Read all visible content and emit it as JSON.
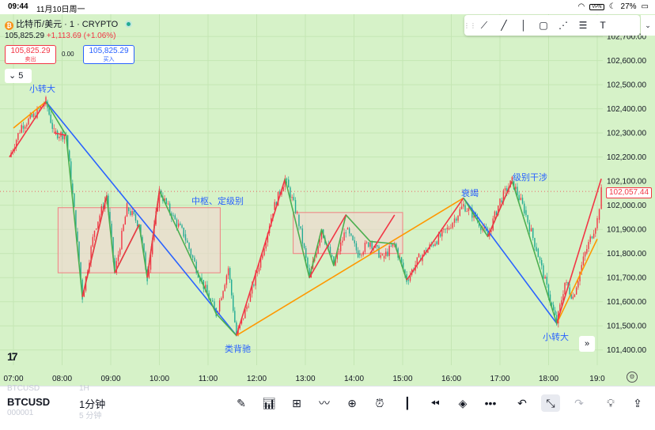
{
  "status_bar": {
    "time": "09:44",
    "date": "11月10日周一",
    "vpn": "VPN",
    "battery": "27%"
  },
  "symbol": {
    "title": "比特币/美元 · 1 · CRYPTO",
    "price": "105,825.29",
    "change": "+1,113.69 (+1.06%)",
    "sell_price": "105,825.29",
    "sell_label": "卖出",
    "spread": "0.00",
    "buy_price": "105,825.29",
    "buy_label": "买入",
    "interval": "5"
  },
  "draw_tools": [
    "trend-line-icon",
    "ray-icon",
    "vertical-line-icon",
    "rectangle-icon",
    "pattern-icon",
    "fib-icon",
    "text-icon"
  ],
  "annotations": {
    "small_turn_1": "小转大",
    "pivot": "中枢、定级别",
    "divergence": "类背驰",
    "exhaustion": "衰竭",
    "level_interference": "级别干涉",
    "small_turn_2": "小转大"
  },
  "last_price_label": "102,057.44",
  "bottom_bar": {
    "symbol": "BTCUSD",
    "timeframe": "1分钟",
    "ghost_top": "BTCUSD",
    "ghost_top_tf": "1H",
    "ghost_bottom": "000001",
    "ghost_bottom_tf": "5 分钟"
  },
  "colors": {
    "background": "#d6f2c8",
    "up": "#f23645",
    "down": "#22ab94",
    "leg_up": "#f23645",
    "leg_down": "#2962ff",
    "orange": "#ff9800",
    "green_leg": "#4caf50",
    "pivot_fill": "#f2d6d0",
    "pivot_border": "#f08080"
  },
  "chart_data": {
    "type": "line",
    "title": "比特币/美元 · 1 · CRYPTO",
    "x_ticks": [
      "07:00",
      "08:00",
      "09:00",
      "10:00",
      "11:00",
      "12:00",
      "13:00",
      "14:00",
      "15:00",
      "16:00",
      "17:00",
      "18:00",
      "19:0"
    ],
    "y_ticks": [
      "102,700.00",
      "102,600.00",
      "102,500.00",
      "102,400.00",
      "102,300.00",
      "102,200.00",
      "102,100.00",
      "102,000.00",
      "101,900.00",
      "101,800.00",
      "101,700.00",
      "101,600.00",
      "101,500.00",
      "101,400.00"
    ],
    "ylim": [
      101350,
      102720
    ],
    "price_series": [
      [
        "06:55",
        102200
      ],
      [
        "07:10",
        102330
      ],
      [
        "07:25",
        102370
      ],
      [
        "07:40",
        102430
      ],
      [
        "07:50",
        102300
      ],
      [
        "08:05",
        102290
      ],
      [
        "08:15",
        101980
      ],
      [
        "08:25",
        101620
      ],
      [
        "08:40",
        101900
      ],
      [
        "08:55",
        102040
      ],
      [
        "09:05",
        101720
      ],
      [
        "09:20",
        101990
      ],
      [
        "09:35",
        101920
      ],
      [
        "09:45",
        101700
      ],
      [
        "10:00",
        102060
      ],
      [
        "10:15",
        101960
      ],
      [
        "10:30",
        101880
      ],
      [
        "10:50",
        101700
      ],
      [
        "11:10",
        101550
      ],
      [
        "11:25",
        101740
      ],
      [
        "11:35",
        101460
      ],
      [
        "11:50",
        101600
      ],
      [
        "12:05",
        101780
      ],
      [
        "12:20",
        101980
      ],
      [
        "12:35",
        102110
      ],
      [
        "12:50",
        101960
      ],
      [
        "13:05",
        101700
      ],
      [
        "13:20",
        101900
      ],
      [
        "13:35",
        101750
      ],
      [
        "13:50",
        101900
      ],
      [
        "14:05",
        101800
      ],
      [
        "14:20",
        101850
      ],
      [
        "14:35",
        101780
      ],
      [
        "14:50",
        101840
      ],
      [
        "15:05",
        101690
      ],
      [
        "15:20",
        101780
      ],
      [
        "15:40",
        101850
      ],
      [
        "15:55",
        101900
      ],
      [
        "16:15",
        102000
      ],
      [
        "16:30",
        101950
      ],
      [
        "16:45",
        101870
      ],
      [
        "17:00",
        102020
      ],
      [
        "17:15",
        102100
      ],
      [
        "17:30",
        101980
      ],
      [
        "17:45",
        101820
      ],
      [
        "18:00",
        101630
      ],
      [
        "18:10",
        101510
      ],
      [
        "18:20",
        101680
      ],
      [
        "18:30",
        101620
      ],
      [
        "18:45",
        101800
      ],
      [
        "19:00",
        101940
      ],
      [
        "19:05",
        102057.44
      ]
    ],
    "legs": [
      {
        "color": "leg_down",
        "points": [
          [
            "07:40",
            102430
          ],
          [
            "11:35",
            101460
          ]
        ]
      },
      {
        "color": "orange",
        "points": [
          [
            "07:00",
            102320
          ],
          [
            "07:40",
            102430
          ]
        ]
      },
      {
        "color": "orange",
        "points": [
          [
            "11:35",
            101460
          ],
          [
            "16:15",
            102030
          ]
        ]
      },
      {
        "color": "leg_down",
        "points": [
          [
            "16:15",
            102030
          ],
          [
            "18:10",
            101510
          ]
        ]
      },
      {
        "color": "orange",
        "points": [
          [
            "18:10",
            101510
          ],
          [
            "19:00",
            101860
          ]
        ]
      },
      {
        "color": "leg_up",
        "points": [
          [
            "06:55",
            102200
          ],
          [
            "07:40",
            102430
          ]
        ]
      },
      {
        "color": "leg_up",
        "points": [
          [
            "18:10",
            101510
          ],
          [
            "19:05",
            102110
          ]
        ]
      },
      {
        "color": "green_leg",
        "points": [
          [
            "07:40",
            102430
          ],
          [
            "08:05",
            102290
          ],
          [
            "08:25",
            101620
          ],
          [
            "08:55",
            102040
          ],
          [
            "09:05",
            101720
          ],
          [
            "09:35",
            101920
          ],
          [
            "09:45",
            101700
          ],
          [
            "10:00",
            102060
          ],
          [
            "10:50",
            101700
          ],
          [
            "11:10",
            101550
          ],
          [
            "11:35",
            101460
          ]
        ]
      },
      {
        "color": "leg_up",
        "points": [
          [
            "07:50",
            102300
          ],
          [
            "08:05",
            102290
          ]
        ]
      },
      {
        "color": "leg_up",
        "points": [
          [
            "08:25",
            101620
          ],
          [
            "08:55",
            102040
          ]
        ]
      },
      {
        "color": "leg_up",
        "points": [
          [
            "09:05",
            101720
          ],
          [
            "09:35",
            101920
          ]
        ]
      },
      {
        "color": "leg_up",
        "points": [
          [
            "09:45",
            101700
          ],
          [
            "10:00",
            102060
          ]
        ]
      },
      {
        "color": "leg_up",
        "points": [
          [
            "11:35",
            101460
          ],
          [
            "12:35",
            102110
          ]
        ]
      },
      {
        "color": "green_leg",
        "points": [
          [
            "12:35",
            102110
          ],
          [
            "13:05",
            101700
          ],
          [
            "13:20",
            101900
          ],
          [
            "13:35",
            101750
          ],
          [
            "13:50",
            101960
          ],
          [
            "14:20",
            101850
          ],
          [
            "14:50",
            101840
          ],
          [
            "15:05",
            101690
          ]
        ]
      },
      {
        "color": "leg_up",
        "points": [
          [
            "13:05",
            101700
          ],
          [
            "13:50",
            101960
          ]
        ]
      },
      {
        "color": "leg_up",
        "points": [
          [
            "14:20",
            101800
          ],
          [
            "14:50",
            101960
          ]
        ]
      },
      {
        "color": "leg_up",
        "points": [
          [
            "15:05",
            101690
          ],
          [
            "16:15",
            102030
          ]
        ]
      },
      {
        "color": "green_leg",
        "points": [
          [
            "16:15",
            102030
          ],
          [
            "16:45",
            101870
          ],
          [
            "17:15",
            102100
          ],
          [
            "18:10",
            101510
          ]
        ]
      },
      {
        "color": "leg_up",
        "points": [
          [
            "16:45",
            101870
          ],
          [
            "17:15",
            102100
          ]
        ]
      }
    ],
    "pivot_zones": [
      {
        "x_from": "07:55",
        "x_to": "11:15",
        "y_low": 101720,
        "y_high": 101990
      },
      {
        "x_from": "12:45",
        "x_to": "15:00",
        "y_low": 101800,
        "y_high": 101970
      }
    ]
  }
}
